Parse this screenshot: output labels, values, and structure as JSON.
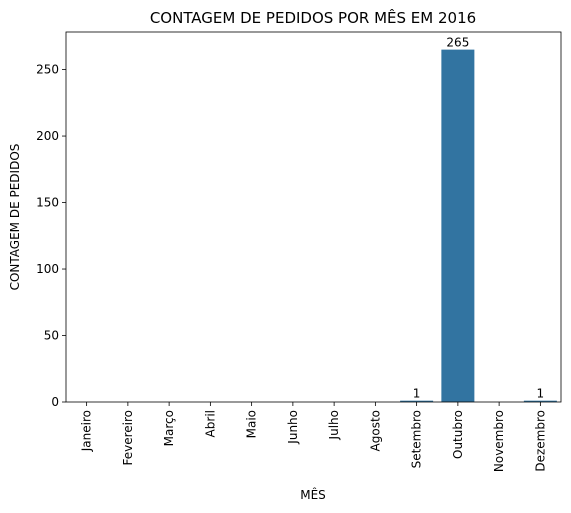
{
  "chart_data": {
    "type": "bar",
    "title": "CONTAGEM DE PEDIDOS POR MÊS EM 2016",
    "xlabel": "MÊS",
    "ylabel": "CONTAGEM DE PEDIDOS",
    "categories": [
      "Janeiro",
      "Fevereiro",
      "Março",
      "Abril",
      "Maio",
      "Junho",
      "Julho",
      "Agosto",
      "Setembro",
      "Outubro",
      "Novembro",
      "Dezembro"
    ],
    "values": [
      0,
      0,
      0,
      0,
      0,
      0,
      0,
      0,
      1,
      265,
      0,
      1
    ],
    "data_labels": [
      "",
      "",
      "",
      "",
      "",
      "",
      "",
      "",
      "1",
      "265",
      "",
      "1"
    ],
    "yticks": [
      0,
      50,
      100,
      150,
      200,
      250
    ],
    "ylim": [
      0,
      278.25
    ],
    "grid": false,
    "bar_color": "#3274a1"
  }
}
